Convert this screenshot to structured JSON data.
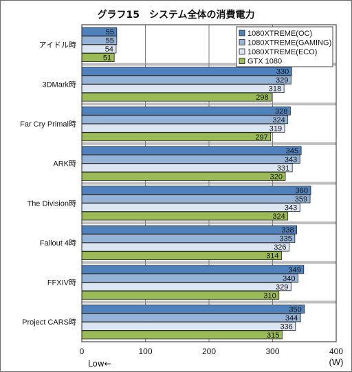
{
  "chart_data": {
    "type": "bar",
    "orientation": "horizontal",
    "title": "グラフ15　システム全体の消費電力",
    "categories": [
      "アイドル時",
      "3DMark時",
      "Far Cry Primal時",
      "ARK時",
      "The Division時",
      "Fallout 4時",
      "FFXIV時",
      "Project CARS時"
    ],
    "series": [
      {
        "name": "1080XTREME(OC)",
        "color": "#4f81bd",
        "values": [
          55,
          330,
          328,
          345,
          360,
          338,
          349,
          350
        ]
      },
      {
        "name": "1080XTREME(GAMING)",
        "color": "#95b3d7",
        "values": [
          55,
          329,
          324,
          343,
          359,
          335,
          340,
          344
        ]
      },
      {
        "name": "1080XTREME(ECO)",
        "color": "#dce6f2",
        "values": [
          54,
          318,
          319,
          331,
          343,
          326,
          329,
          336
        ]
      },
      {
        "name": "GTX 1080",
        "color": "#9bbb59",
        "values": [
          51,
          298,
          297,
          320,
          324,
          314,
          310,
          315
        ]
      }
    ],
    "xlim": [
      0,
      400
    ],
    "xticks": [
      0,
      100,
      200,
      300,
      400
    ],
    "xlabel": "(W)",
    "direction_label": "Low←",
    "grid": true,
    "legend_position": "top-right",
    "colors": {
      "plot_background": "#ffffff",
      "grid": "#7f7f7f",
      "stripe": "#bfbfbf"
    }
  }
}
